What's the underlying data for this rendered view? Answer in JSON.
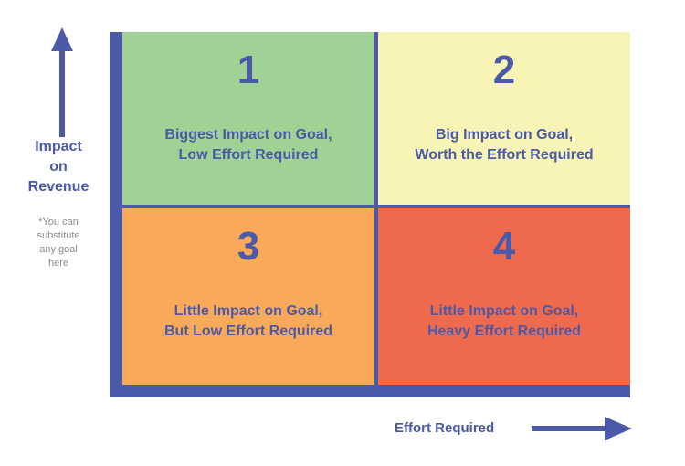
{
  "y_axis": {
    "label_lines": [
      "Impact",
      "on",
      "Revenue"
    ],
    "note_lines": [
      "*You can",
      "substitute",
      "any goal",
      "here"
    ]
  },
  "x_axis": {
    "label": "Effort Required"
  },
  "quadrants": [
    {
      "number": "1",
      "lines": [
        "Biggest Impact on Goal,",
        "Low Effort Required"
      ],
      "color": "#a0d195"
    },
    {
      "number": "2",
      "lines": [
        "Big Impact on Goal,",
        "Worth the Effort Required"
      ],
      "color": "#f7f4b6"
    },
    {
      "number": "3",
      "lines": [
        "Little Impact on Goal,",
        "But Low Effort Required"
      ],
      "color": "#f9a95a"
    },
    {
      "number": "4",
      "lines": [
        "Little Impact on Goal,",
        "Heavy Effort Required"
      ],
      "color": "#ef6a4d"
    }
  ],
  "colors": {
    "accent": "#4b5aa8",
    "note_text": "#8a8a8a",
    "background": "#ffffff"
  }
}
